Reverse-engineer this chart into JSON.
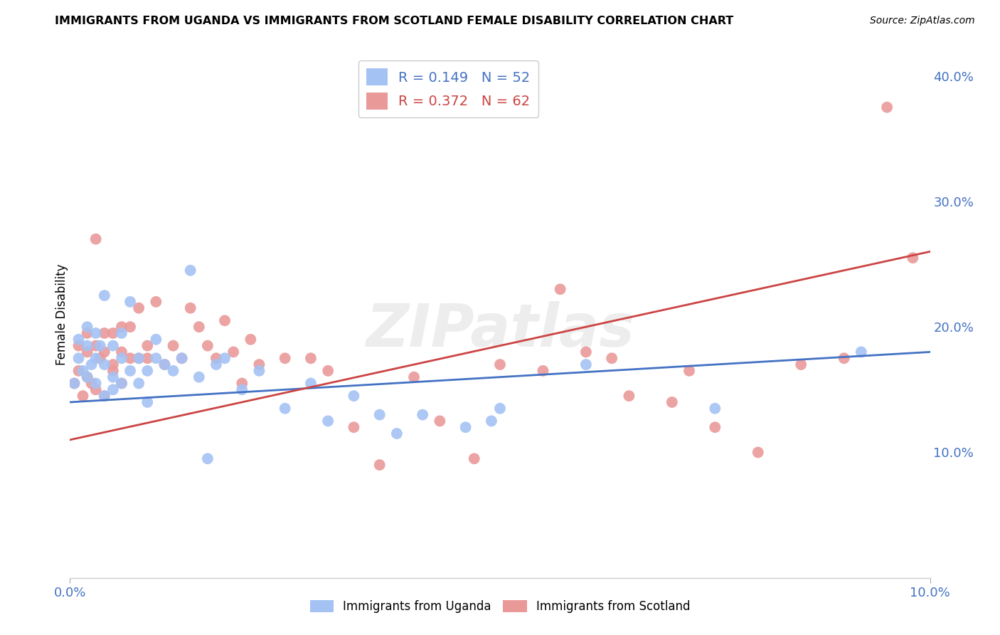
{
  "title": "IMMIGRANTS FROM UGANDA VS IMMIGRANTS FROM SCOTLAND FEMALE DISABILITY CORRELATION CHART",
  "source": "Source: ZipAtlas.com",
  "ylabel": "Female Disability",
  "xlim": [
    0.0,
    0.1
  ],
  "ylim": [
    0.0,
    0.42
  ],
  "yticks": [
    0.1,
    0.2,
    0.3,
    0.4
  ],
  "uganda_color": "#a4c2f4",
  "scotland_color": "#ea9999",
  "uganda_line_color": "#4472c4",
  "scotland_line_color": "#cc4444",
  "uganda_R": 0.149,
  "uganda_N": 52,
  "scotland_R": 0.372,
  "scotland_N": 62,
  "watermark": "ZIPatlas",
  "background_color": "#ffffff",
  "grid_color": "#cccccc",
  "axis_label_color": "#4472c4",
  "uganda_scatter_x": [
    0.0005,
    0.001,
    0.001,
    0.0015,
    0.002,
    0.002,
    0.002,
    0.0025,
    0.003,
    0.003,
    0.003,
    0.0035,
    0.004,
    0.004,
    0.004,
    0.005,
    0.005,
    0.005,
    0.006,
    0.006,
    0.006,
    0.007,
    0.007,
    0.008,
    0.008,
    0.009,
    0.009,
    0.01,
    0.01,
    0.011,
    0.012,
    0.013,
    0.014,
    0.015,
    0.016,
    0.017,
    0.018,
    0.02,
    0.022,
    0.025,
    0.028,
    0.03,
    0.033,
    0.036,
    0.038,
    0.041,
    0.046,
    0.049,
    0.05,
    0.06,
    0.075,
    0.092
  ],
  "uganda_scatter_y": [
    0.155,
    0.175,
    0.19,
    0.165,
    0.185,
    0.16,
    0.2,
    0.17,
    0.155,
    0.195,
    0.175,
    0.185,
    0.145,
    0.17,
    0.225,
    0.16,
    0.185,
    0.15,
    0.155,
    0.175,
    0.195,
    0.22,
    0.165,
    0.175,
    0.155,
    0.165,
    0.14,
    0.175,
    0.19,
    0.17,
    0.165,
    0.175,
    0.245,
    0.16,
    0.095,
    0.17,
    0.175,
    0.15,
    0.165,
    0.135,
    0.155,
    0.125,
    0.145,
    0.13,
    0.115,
    0.13,
    0.12,
    0.125,
    0.135,
    0.17,
    0.135,
    0.18
  ],
  "scotland_scatter_x": [
    0.0005,
    0.001,
    0.001,
    0.0015,
    0.002,
    0.002,
    0.002,
    0.0025,
    0.003,
    0.003,
    0.003,
    0.0035,
    0.004,
    0.004,
    0.004,
    0.005,
    0.005,
    0.005,
    0.006,
    0.006,
    0.006,
    0.007,
    0.007,
    0.008,
    0.008,
    0.009,
    0.009,
    0.01,
    0.011,
    0.012,
    0.013,
    0.014,
    0.015,
    0.016,
    0.017,
    0.018,
    0.019,
    0.02,
    0.021,
    0.022,
    0.025,
    0.028,
    0.03,
    0.033,
    0.036,
    0.04,
    0.043,
    0.047,
    0.05,
    0.055,
    0.057,
    0.06,
    0.063,
    0.065,
    0.07,
    0.072,
    0.075,
    0.08,
    0.085,
    0.09,
    0.095,
    0.098
  ],
  "scotland_scatter_y": [
    0.155,
    0.165,
    0.185,
    0.145,
    0.18,
    0.16,
    0.195,
    0.155,
    0.15,
    0.185,
    0.27,
    0.175,
    0.145,
    0.195,
    0.18,
    0.165,
    0.195,
    0.17,
    0.155,
    0.2,
    0.18,
    0.175,
    0.2,
    0.215,
    0.175,
    0.185,
    0.175,
    0.22,
    0.17,
    0.185,
    0.175,
    0.215,
    0.2,
    0.185,
    0.175,
    0.205,
    0.18,
    0.155,
    0.19,
    0.17,
    0.175,
    0.175,
    0.165,
    0.12,
    0.09,
    0.16,
    0.125,
    0.095,
    0.17,
    0.165,
    0.23,
    0.18,
    0.175,
    0.145,
    0.14,
    0.165,
    0.12,
    0.1,
    0.17,
    0.175,
    0.375,
    0.255
  ]
}
